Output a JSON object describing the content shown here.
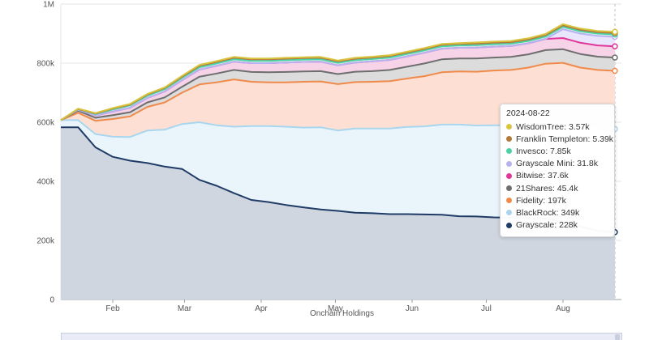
{
  "chart_data": {
    "type": "area",
    "stacked": true,
    "title": "",
    "xlabel": "Onchain Holdings",
    "ylabel": "",
    "ylim": [
      0,
      1000000
    ],
    "y_ticks": [
      {
        "value": 0,
        "label": "0"
      },
      {
        "value": 200000,
        "label": "200k"
      },
      {
        "value": 400000,
        "label": "400k"
      },
      {
        "value": 600000,
        "label": "600k"
      },
      {
        "value": 800000,
        "label": "800k"
      },
      {
        "value": 1000000,
        "label": "1M"
      }
    ],
    "x_ticks": [
      {
        "date": "2024-02-01",
        "label": "Feb"
      },
      {
        "date": "2024-03-01",
        "label": "Mar"
      },
      {
        "date": "2024-04-01",
        "label": "Apr"
      },
      {
        "date": "2024-05-01",
        "label": "May"
      },
      {
        "date": "2024-06-01",
        "label": "Jun"
      },
      {
        "date": "2024-07-01",
        "label": "Jul"
      },
      {
        "date": "2024-08-01",
        "label": "Aug"
      }
    ],
    "grid": true,
    "x": [
      "2024-01-11",
      "2024-01-18",
      "2024-01-25",
      "2024-02-01",
      "2024-02-08",
      "2024-02-15",
      "2024-02-22",
      "2024-02-29",
      "2024-03-07",
      "2024-03-14",
      "2024-03-21",
      "2024-03-28",
      "2024-04-04",
      "2024-04-11",
      "2024-04-18",
      "2024-04-25",
      "2024-05-02",
      "2024-05-09",
      "2024-05-16",
      "2024-05-23",
      "2024-05-30",
      "2024-06-06",
      "2024-06-13",
      "2024-06-20",
      "2024-06-27",
      "2024-07-04",
      "2024-07-11",
      "2024-07-18",
      "2024-07-25",
      "2024-08-01",
      "2024-08-08",
      "2024-08-15",
      "2024-08-22"
    ],
    "series": [
      {
        "name": "Grayscale",
        "color": "#1f3b66",
        "fill": "#cfd6e0",
        "values": [
          583,
          583,
          515,
          483,
          470,
          462,
          450,
          442,
          405,
          385,
          360,
          337,
          330,
          320,
          312,
          305,
          300,
          294,
          292,
          289,
          289,
          288,
          287,
          282,
          281,
          278,
          277,
          276,
          274,
          263,
          248,
          233,
          228
        ]
      },
      {
        "name": "BlackRock",
        "color": "#a9d6ee",
        "fill": "#e9f4fb",
        "values": [
          24,
          24,
          45,
          68,
          80,
          110,
          125,
          152,
          195,
          205,
          225,
          250,
          257,
          265,
          270,
          278,
          272,
          285,
          287,
          290,
          295,
          298,
          305,
          310,
          308,
          312,
          313,
          317,
          324,
          340,
          350,
          349,
          349
        ]
      },
      {
        "name": "Fidelity",
        "color": "#f08a4b",
        "fill": "#fde0d3",
        "values": [
          0,
          25,
          45,
          60,
          70,
          80,
          92,
          106,
          128,
          145,
          160,
          150,
          148,
          150,
          155,
          155,
          157,
          157,
          158,
          160,
          164,
          170,
          177,
          180,
          182,
          185,
          187,
          192,
          200,
          198,
          187,
          195,
          197
        ]
      },
      {
        "name": "21Shares",
        "color": "#6e6e6e",
        "fill": "#dcdcdc",
        "values": [
          0,
          7,
          10,
          13,
          14,
          15,
          17,
          20,
          26,
          30,
          32,
          33,
          34,
          35,
          35,
          35,
          34,
          35,
          36,
          38,
          40,
          43,
          44,
          44,
          45,
          44,
          44,
          45,
          46,
          46,
          46,
          45,
          45
        ]
      },
      {
        "name": "Bitwise",
        "color": "#e1369a",
        "fill": "#f7d3e8",
        "values": [
          0,
          3,
          8,
          12,
          15,
          15,
          20,
          22,
          24,
          26,
          28,
          30,
          31,
          32,
          32,
          32,
          30,
          31,
          33,
          34,
          35,
          36,
          36,
          36,
          37,
          37,
          37,
          37,
          38,
          38,
          38,
          38,
          38
        ]
      },
      {
        "name": "Grayscale Mini",
        "color": "#b9b2f0",
        "fill": "#e8e5fc",
        "values": [
          0,
          0,
          0,
          0,
          0,
          0,
          0,
          0,
          0,
          0,
          0,
          0,
          0,
          0,
          0,
          0,
          0,
          0,
          0,
          0,
          0,
          0,
          0,
          0,
          0,
          0,
          0,
          0,
          0,
          30,
          31,
          32,
          32
        ]
      },
      {
        "name": "Invesco",
        "color": "#4bd1a6",
        "fill": "#d6f5ea",
        "values": [
          0,
          2,
          5,
          7,
          8,
          8,
          8,
          8,
          8,
          8,
          8,
          8,
          8,
          8,
          8,
          8,
          8,
          8,
          8,
          8,
          8,
          8,
          8,
          8,
          8,
          8,
          8,
          8,
          8,
          8,
          8,
          8,
          8
        ]
      },
      {
        "name": "Franklin Templeton",
        "color": "#b37a3a",
        "fill": "#f0e2d2",
        "values": [
          0,
          1,
          2,
          3,
          3,
          4,
          4,
          4,
          5,
          5,
          5,
          5,
          5,
          5,
          5,
          5,
          5,
          5,
          5,
          5,
          5,
          5,
          5,
          5,
          5,
          5,
          5,
          5,
          5,
          5,
          5,
          5,
          5
        ]
      },
      {
        "name": "WisdomTree",
        "color": "#d9c43f",
        "fill": "#f5efc8",
        "values": [
          0,
          1,
          1,
          2,
          2,
          2,
          2,
          3,
          3,
          3,
          3,
          3,
          3,
          3,
          3,
          3,
          3,
          3,
          3,
          3,
          3,
          3,
          3,
          3,
          4,
          4,
          4,
          4,
          4,
          4,
          4,
          4,
          4
        ]
      }
    ],
    "y_unit_multiplier": 1000,
    "tooltip": {
      "date": "2024-08-22",
      "entries": [
        {
          "name": "WisdomTree",
          "value": "3.57k",
          "color": "#d9c43f"
        },
        {
          "name": "Franklin Templeton",
          "value": "5.39k",
          "color": "#b37a3a"
        },
        {
          "name": "Invesco",
          "value": "7.85k",
          "color": "#4bd1a6"
        },
        {
          "name": "Grayscale Mini",
          "value": "31.8k",
          "color": "#b9b2f0"
        },
        {
          "name": "Bitwise",
          "value": "37.6k",
          "color": "#e1369a"
        },
        {
          "name": "21Shares",
          "value": "45.4k",
          "color": "#6e6e6e"
        },
        {
          "name": "Fidelity",
          "value": "197k",
          "color": "#f08a4b"
        },
        {
          "name": "BlackRock",
          "value": "349k",
          "color": "#a9d6ee"
        },
        {
          "name": "Grayscale",
          "value": "228k",
          "color": "#1f3b66"
        }
      ]
    }
  }
}
